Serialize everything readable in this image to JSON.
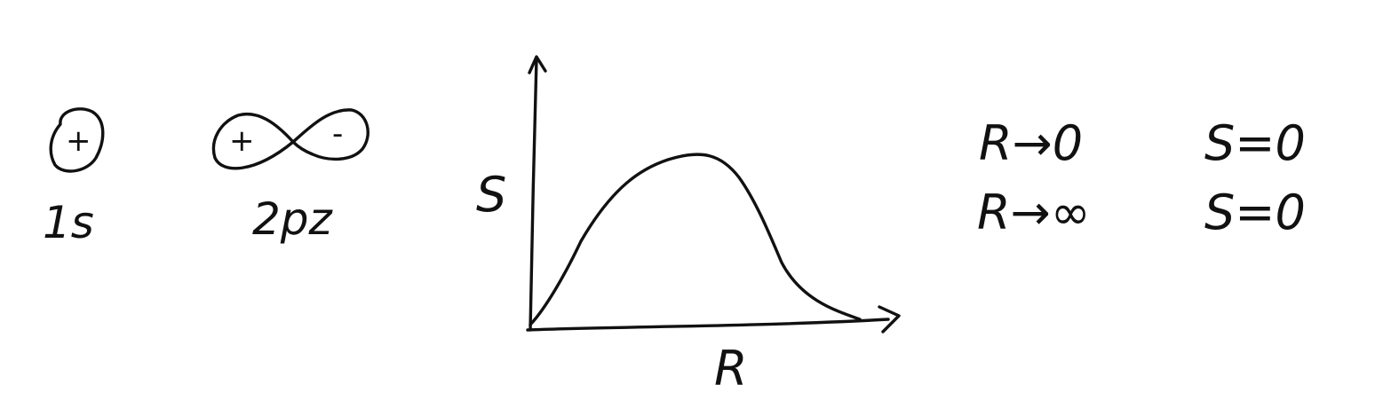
{
  "orbitals": {
    "s": {
      "sign": "+",
      "label": "1s"
    },
    "pz": {
      "sign_left": "+",
      "sign_right": "-",
      "label": "2pz"
    }
  },
  "graph": {
    "ylabel": "S",
    "xlabel": "R"
  },
  "limits": [
    {
      "condition": "R→0",
      "result": "S=0"
    },
    {
      "condition": "R→∞",
      "result": "S=0"
    }
  ],
  "colors": {
    "ink": "#111111",
    "background": "#ffffff"
  }
}
